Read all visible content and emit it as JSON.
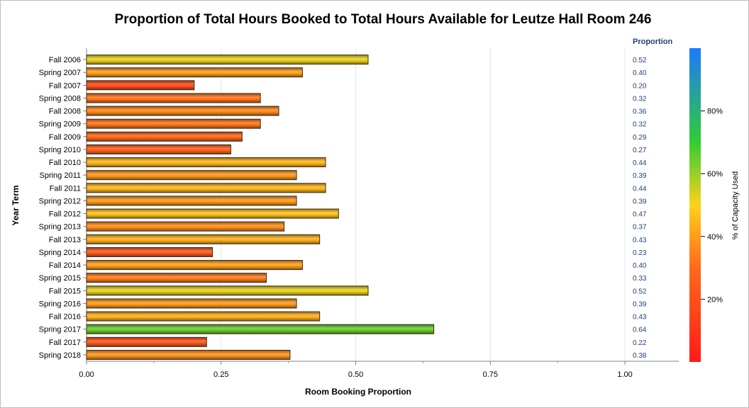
{
  "chart_data": {
    "type": "bar",
    "orientation": "horizontal",
    "title": "Proportion of Total Hours Booked to Total Hours Available for Leutze Hall Room 246",
    "xlabel": "Room Booking Proportion",
    "ylabel": "Year Term",
    "xlim": [
      0,
      1.1
    ],
    "x_ticks": [
      "0.00",
      "0.25",
      "0.50",
      "0.75",
      "1.00"
    ],
    "grid": "vertical",
    "categories": [
      "Fall 2006",
      "Spring 2007",
      "Fall 2007",
      "Spring 2008",
      "Fall 2008",
      "Spring 2009",
      "Fall 2009",
      "Spring 2010",
      "Fall 2010",
      "Spring 2011",
      "Fall 2011",
      "Spring 2012",
      "Fall 2012",
      "Spring 2013",
      "Fall 2013",
      "Spring 2014",
      "Fall 2014",
      "Spring 2015",
      "Fall 2015",
      "Spring 2016",
      "Fall 2016",
      "Spring 2017",
      "Fall 2017",
      "Spring 2018"
    ],
    "values": [
      0.523,
      0.401,
      0.2,
      0.323,
      0.357,
      0.323,
      0.289,
      0.268,
      0.444,
      0.39,
      0.444,
      0.39,
      0.468,
      0.367,
      0.433,
      0.234,
      0.401,
      0.334,
      0.523,
      0.39,
      0.433,
      0.645,
      0.223,
      0.378
    ],
    "value_column_header": "Proportion",
    "value_labels": [
      "0.52",
      "0.40",
      "0.20",
      "0.32",
      "0.36",
      "0.32",
      "0.29",
      "0.27",
      "0.44",
      "0.39",
      "0.44",
      "0.39",
      "0.47",
      "0.37",
      "0.43",
      "0.23",
      "0.40",
      "0.33",
      "0.52",
      "0.39",
      "0.43",
      "0.64",
      "0.22",
      "0.38"
    ],
    "color_legend": {
      "title": "% of Capacity Used",
      "placement": "right",
      "range": [
        0,
        1
      ],
      "ticks": [
        "20%",
        "40%",
        "60%",
        "80%"
      ],
      "tick_values": [
        0.2,
        0.4,
        0.6,
        0.8
      ],
      "colors": [
        "#ff1a1a",
        "#ff6a1a",
        "#ffd21a",
        "#33cc33",
        "#1a7aff"
      ]
    }
  }
}
